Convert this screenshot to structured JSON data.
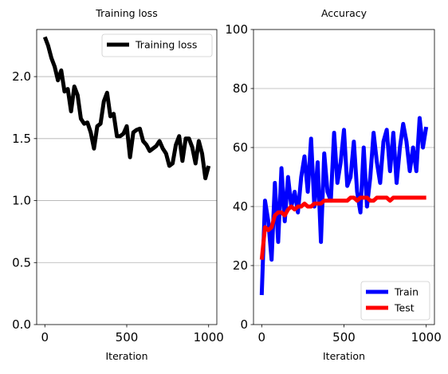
{
  "chart_data": [
    {
      "type": "line",
      "title": "Training loss",
      "xlabel": "Iteration",
      "ylabel": "",
      "xlim": [
        -50,
        1050
      ],
      "ylim": [
        0,
        2.38
      ],
      "xticks": [
        "0",
        "500",
        "1000"
      ],
      "yticks": [
        "0.0",
        "0.5",
        "1.0",
        "1.5",
        "2.0"
      ],
      "grid": "horizontal",
      "legend": "upper-right",
      "series": [
        {
          "name": "Training loss",
          "color": "#000000",
          "x": [
            0,
            20,
            40,
            60,
            80,
            100,
            120,
            140,
            160,
            180,
            200,
            220,
            240,
            260,
            280,
            300,
            320,
            340,
            360,
            380,
            400,
            420,
            440,
            460,
            480,
            500,
            520,
            540,
            560,
            580,
            600,
            620,
            640,
            660,
            680,
            700,
            720,
            740,
            760,
            780,
            800,
            820,
            840,
            860,
            880,
            900,
            920,
            940,
            960,
            980,
            1000
          ],
          "values": [
            2.32,
            2.25,
            2.15,
            2.08,
            1.97,
            2.05,
            1.88,
            1.9,
            1.72,
            1.92,
            1.85,
            1.66,
            1.62,
            1.63,
            1.55,
            1.42,
            1.6,
            1.62,
            1.8,
            1.87,
            1.68,
            1.7,
            1.52,
            1.52,
            1.54,
            1.6,
            1.35,
            1.55,
            1.57,
            1.58,
            1.48,
            1.45,
            1.4,
            1.42,
            1.44,
            1.48,
            1.42,
            1.38,
            1.28,
            1.3,
            1.45,
            1.52,
            1.32,
            1.5,
            1.5,
            1.43,
            1.3,
            1.48,
            1.38,
            1.18,
            1.28
          ]
        }
      ]
    },
    {
      "type": "line",
      "title": "Accuracy",
      "xlabel": "Iteration",
      "ylabel": "",
      "xlim": [
        -50,
        1050
      ],
      "ylim": [
        0,
        100
      ],
      "xticks": [
        "0",
        "500",
        "1000"
      ],
      "yticks": [
        "0",
        "20",
        "40",
        "60",
        "80",
        "100"
      ],
      "grid": "horizontal",
      "legend": "lower-right",
      "series": [
        {
          "name": "Train",
          "color": "#0000ff",
          "x": [
            0,
            20,
            40,
            60,
            80,
            100,
            120,
            140,
            160,
            180,
            200,
            220,
            240,
            260,
            280,
            300,
            320,
            340,
            360,
            380,
            400,
            420,
            440,
            460,
            480,
            500,
            520,
            540,
            560,
            580,
            600,
            620,
            640,
            660,
            680,
            700,
            720,
            740,
            760,
            780,
            800,
            820,
            840,
            860,
            880,
            900,
            920,
            940,
            960,
            980,
            1000
          ],
          "values": [
            10,
            42,
            35,
            22,
            48,
            28,
            53,
            35,
            50,
            40,
            45,
            38,
            50,
            57,
            45,
            63,
            40,
            55,
            28,
            58,
            45,
            42,
            65,
            48,
            55,
            66,
            47,
            50,
            62,
            45,
            38,
            60,
            40,
            50,
            65,
            55,
            48,
            62,
            66,
            52,
            65,
            48,
            60,
            68,
            62,
            52,
            60,
            52,
            70,
            60,
            67
          ]
        },
        {
          "name": "Test",
          "color": "#ff0000",
          "x": [
            0,
            20,
            40,
            60,
            80,
            100,
            120,
            140,
            160,
            180,
            200,
            220,
            240,
            260,
            280,
            300,
            320,
            340,
            360,
            380,
            400,
            420,
            440,
            460,
            480,
            500,
            520,
            540,
            560,
            580,
            600,
            620,
            640,
            660,
            680,
            700,
            720,
            740,
            760,
            780,
            800,
            820,
            840,
            860,
            880,
            900,
            920,
            940,
            960,
            980,
            1000
          ],
          "values": [
            22,
            33,
            32,
            33,
            37,
            38,
            38,
            37,
            39,
            40,
            39,
            40,
            40,
            41,
            40,
            40,
            41,
            41,
            41,
            42,
            42,
            42,
            42,
            42,
            42,
            42,
            42,
            43,
            43,
            42,
            43,
            43,
            43,
            42,
            42,
            43,
            43,
            43,
            43,
            42,
            43,
            43,
            43,
            43,
            43,
            43,
            43,
            43,
            43,
            43,
            43
          ]
        }
      ]
    }
  ]
}
